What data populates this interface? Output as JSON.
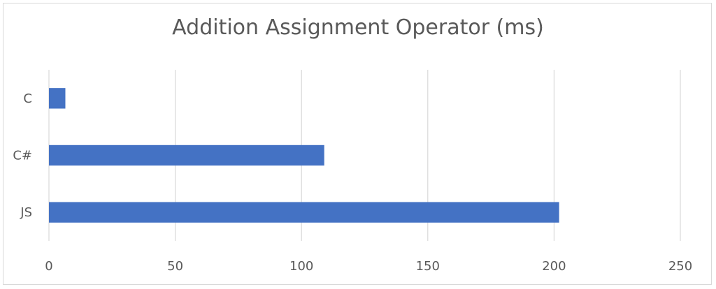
{
  "chart_data": {
    "type": "bar",
    "orientation": "horizontal",
    "title": "Addition Assignment Operator (ms)",
    "categories": [
      "C",
      "C#",
      "JS"
    ],
    "values": [
      6.5,
      109,
      202
    ],
    "xlim": [
      0,
      250
    ],
    "xticks": [
      0,
      50,
      100,
      150,
      200,
      250
    ],
    "xlabel": "",
    "ylabel": "",
    "grid": "vertical",
    "legend": "none",
    "bar_color": "#4472c4",
    "grid_color": "#d9d9d9"
  }
}
